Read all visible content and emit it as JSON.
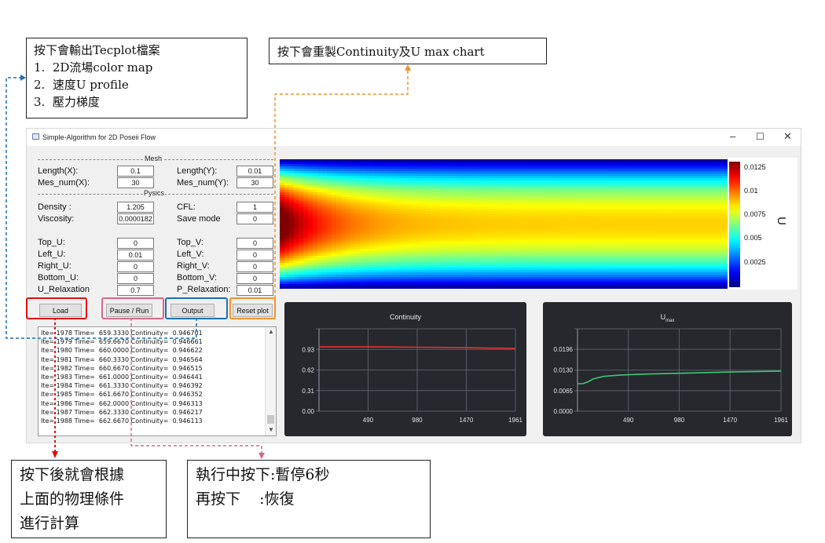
{
  "notes": {
    "output_note": {
      "lines": [
        "按下會輸出Tecplot檔案",
        "1.  2D流場color map",
        "2.  速度U profile",
        "3.  壓力梯度"
      ]
    },
    "reset_note": {
      "text": "按下會重製Continuity及U max chart"
    },
    "load_note": {
      "lines": [
        "按下後就會根據",
        "上面的物理條件",
        "進行計算"
      ]
    },
    "pause_note": {
      "lines": [
        "執行中按下:暫停6秒",
        "再按下    :恢復"
      ]
    }
  },
  "window": {
    "title": "Simple-Algorithm for 2D Poseii Flow",
    "controls": {
      "minimize": "–",
      "maximize": "☐",
      "close": "✕"
    }
  },
  "mesh": {
    "header": "Mesh",
    "length_x_label": "Length(X):",
    "length_x": "0.1",
    "length_y_label": "Length(Y):",
    "length_y": "0.01",
    "mes_num_x_label": "Mes_num(X):",
    "mes_num_x": "30",
    "mes_num_y_label": "Mes_num(Y):",
    "mes_num_y": "30"
  },
  "physics": {
    "header": "Pysics",
    "density_label": "Density :",
    "density": "1.205",
    "cfl_label": "CFL:",
    "cfl": "1",
    "viscosity_label": "Viscosity:",
    "viscosity": "0.0000182",
    "save_mode_label": "Save mode",
    "save_mode": "0",
    "top_u_label": "Top_U:",
    "top_u": "0",
    "top_v_label": "Top_V:",
    "top_v": "0",
    "left_u_label": "Left_U:",
    "left_u": "0.01",
    "left_v_label": "Left_V:",
    "left_v": "0",
    "right_u_label": "Right_U:",
    "right_u": "0",
    "right_v_label": "Right_V:",
    "right_v": "0",
    "bottom_u_label": "Bottom_U:",
    "bottom_u": "0",
    "bottom_v_label": "Bottom_V:",
    "bottom_v": "0",
    "u_relax_label": "U_Relaxation",
    "u_relax": "0.7",
    "p_relax_label": "P_Relaxation:",
    "p_relax": "0.01"
  },
  "buttons": {
    "load": "Load",
    "pause_run": "Pause / Run",
    "output": "Output",
    "reset_plot": "Reset plot"
  },
  "log": [
    {
      "ite": "1978",
      "time": "659.3330",
      "continuity": "0.946701"
    },
    {
      "ite": "1979",
      "time": "659.6670",
      "continuity": "0.946661"
    },
    {
      "ite": "1980",
      "time": "660.0000",
      "continuity": "0.946622"
    },
    {
      "ite": "1981",
      "time": "660.3330",
      "continuity": "0.946564"
    },
    {
      "ite": "1982",
      "time": "660.6670",
      "continuity": "0.946515"
    },
    {
      "ite": "1983",
      "time": "661.0000",
      "continuity": "0.946441"
    },
    {
      "ite": "1984",
      "time": "661.3330",
      "continuity": "0.946392"
    },
    {
      "ite": "1985",
      "time": "661.6670",
      "continuity": "0.946352"
    },
    {
      "ite": "1986",
      "time": "662.0000",
      "continuity": "0.946313"
    },
    {
      "ite": "1987",
      "time": "662.3330",
      "continuity": "0.946217"
    },
    {
      "ite": "1988",
      "time": "662.6670",
      "continuity": "0.946113"
    }
  ],
  "log_format": {
    "ite": "Ite=",
    "time": "Time=",
    "continuity": "Continuity="
  },
  "colormap": {
    "colorbar_ticks": [
      "0.0125",
      "0.01",
      "0.0075",
      "0.005",
      "0.0025"
    ],
    "colorbar_label": "U",
    "max_value": 0.013,
    "colors": [
      "#00007f",
      "#0000ff",
      "#0080ff",
      "#00ffff",
      "#80ff80",
      "#ffff00",
      "#ff8000",
      "#ff0000",
      "#800000"
    ]
  },
  "chart_data": [
    {
      "type": "line",
      "title": "Continuity",
      "title_main": "Continuity",
      "title_sub": "",
      "x_ticks": [
        "490",
        "980",
        "1470",
        "1961"
      ],
      "y_ticks": [
        "0.93",
        "0.62",
        "0.31",
        "0.00"
      ],
      "xlim": [
        0,
        1961
      ],
      "ylim": [
        0,
        1.24
      ],
      "series": [
        {
          "color": "#e53030",
          "x": [
            0,
            200,
            490,
            800,
            980,
            1200,
            1470,
            1700,
            1961
          ],
          "y": [
            0.97,
            0.97,
            0.97,
            0.965,
            0.963,
            0.96,
            0.955,
            0.95,
            0.946
          ]
        }
      ]
    },
    {
      "type": "line",
      "title": "Umax",
      "title_main": "U",
      "title_sub": "max",
      "x_ticks": [
        "490",
        "980",
        "1470",
        "1961"
      ],
      "y_ticks": [
        "0.0196",
        "0.0130",
        "0.0065",
        "0.0000"
      ],
      "xlim": [
        0,
        1961
      ],
      "ylim": [
        0,
        0.0261
      ],
      "series": [
        {
          "color": "#3cc878",
          "x": [
            0,
            50,
            100,
            150,
            250,
            400,
            600,
            980,
            1470,
            1961
          ],
          "y": [
            0.0087,
            0.0087,
            0.0093,
            0.0102,
            0.011,
            0.0114,
            0.0117,
            0.012,
            0.0124,
            0.0127
          ]
        }
      ]
    }
  ],
  "colors": {
    "load_highlight": "#e01010",
    "pause_highlight": "#d46a8a",
    "output_highlight": "#1e6fb0",
    "reset_highlight": "#f0922c"
  }
}
